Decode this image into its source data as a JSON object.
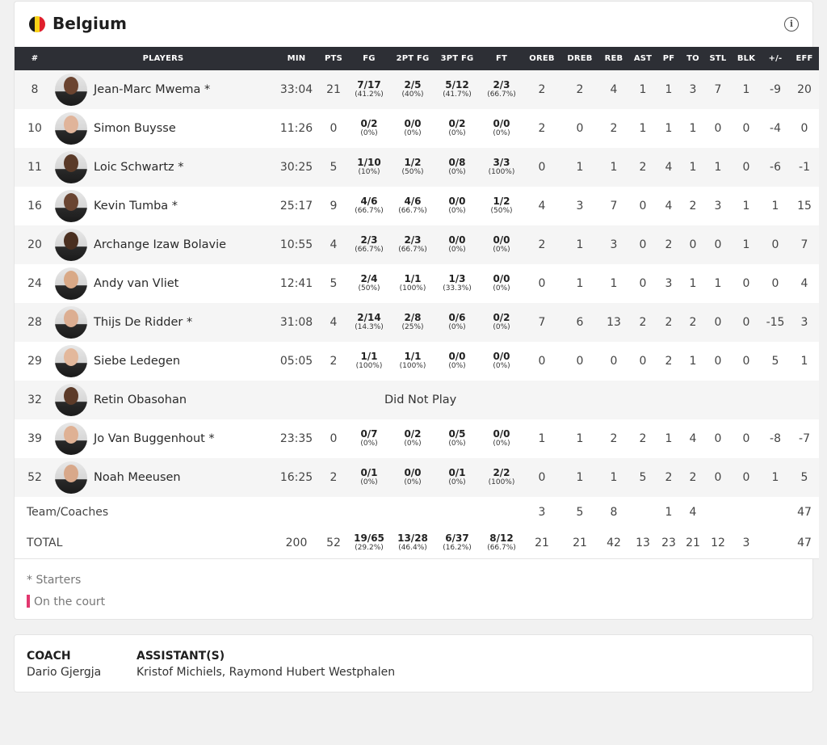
{
  "team": {
    "name": "Belgium",
    "flag_colors": [
      "#1a1a1a",
      "#f7d117",
      "#e0202b"
    ]
  },
  "columns": [
    "#",
    "PLAYERS",
    "MIN",
    "PTS",
    "FG",
    "2PT FG",
    "3PT FG",
    "FT",
    "OREB",
    "DREB",
    "REB",
    "AST",
    "PF",
    "TO",
    "STL",
    "BLK",
    "+/-",
    "EFF"
  ],
  "players": [
    {
      "no": "8",
      "name": "Jean-Marc Mwema *",
      "min": "33:04",
      "pts": "21",
      "fg": [
        "7/17",
        "(41.2%)"
      ],
      "fg2": [
        "2/5",
        "(40%)"
      ],
      "fg3": [
        "5/12",
        "(41.7%)"
      ],
      "ft": [
        "2/3",
        "(66.7%)"
      ],
      "oreb": "2",
      "dreb": "2",
      "reb": "4",
      "ast": "1",
      "pf": "1",
      "to": "3",
      "stl": "7",
      "blk": "1",
      "pm": "-9",
      "eff": "20",
      "skin": "#6b4430"
    },
    {
      "no": "10",
      "name": "Simon Buysse",
      "min": "11:26",
      "pts": "0",
      "fg": [
        "0/2",
        "(0%)"
      ],
      "fg2": [
        "0/0",
        "(0%)"
      ],
      "fg3": [
        "0/2",
        "(0%)"
      ],
      "ft": [
        "0/0",
        "(0%)"
      ],
      "oreb": "2",
      "dreb": "0",
      "reb": "2",
      "ast": "1",
      "pf": "1",
      "to": "1",
      "stl": "0",
      "blk": "0",
      "pm": "-4",
      "eff": "0",
      "skin": "#e0b49a"
    },
    {
      "no": "11",
      "name": "Loic Schwartz *",
      "min": "30:25",
      "pts": "5",
      "fg": [
        "1/10",
        "(10%)"
      ],
      "fg2": [
        "1/2",
        "(50%)"
      ],
      "fg3": [
        "0/8",
        "(0%)"
      ],
      "ft": [
        "3/3",
        "(100%)"
      ],
      "oreb": "0",
      "dreb": "1",
      "reb": "1",
      "ast": "2",
      "pf": "4",
      "to": "1",
      "stl": "1",
      "blk": "0",
      "pm": "-6",
      "eff": "-1",
      "skin": "#5a3a28"
    },
    {
      "no": "16",
      "name": "Kevin Tumba *",
      "min": "25:17",
      "pts": "9",
      "fg": [
        "4/6",
        "(66.7%)"
      ],
      "fg2": [
        "4/6",
        "(66.7%)"
      ],
      "fg3": [
        "0/0",
        "(0%)"
      ],
      "ft": [
        "1/2",
        "(50%)"
      ],
      "oreb": "4",
      "dreb": "3",
      "reb": "7",
      "ast": "0",
      "pf": "4",
      "to": "2",
      "stl": "3",
      "blk": "1",
      "pm": "1",
      "eff": "15",
      "skin": "#6a4532"
    },
    {
      "no": "20",
      "name": "Archange Izaw Bolavie",
      "min": "10:55",
      "pts": "4",
      "fg": [
        "2/3",
        "(66.7%)"
      ],
      "fg2": [
        "2/3",
        "(66.7%)"
      ],
      "fg3": [
        "0/0",
        "(0%)"
      ],
      "ft": [
        "0/0",
        "(0%)"
      ],
      "oreb": "2",
      "dreb": "1",
      "reb": "3",
      "ast": "0",
      "pf": "2",
      "to": "0",
      "stl": "0",
      "blk": "1",
      "pm": "0",
      "eff": "7",
      "skin": "#4a2f20"
    },
    {
      "no": "24",
      "name": "Andy van Vliet",
      "min": "12:41",
      "pts": "5",
      "fg": [
        "2/4",
        "(50%)"
      ],
      "fg2": [
        "1/1",
        "(100%)"
      ],
      "fg3": [
        "1/3",
        "(33.3%)"
      ],
      "ft": [
        "0/0",
        "(0%)"
      ],
      "oreb": "0",
      "dreb": "1",
      "reb": "1",
      "ast": "0",
      "pf": "3",
      "to": "1",
      "stl": "1",
      "blk": "0",
      "pm": "0",
      "eff": "4",
      "skin": "#d9a987"
    },
    {
      "no": "28",
      "name": "Thijs De Ridder *",
      "min": "31:08",
      "pts": "4",
      "fg": [
        "2/14",
        "(14.3%)"
      ],
      "fg2": [
        "2/8",
        "(25%)"
      ],
      "fg3": [
        "0/6",
        "(0%)"
      ],
      "ft": [
        "0/2",
        "(0%)"
      ],
      "oreb": "7",
      "dreb": "6",
      "reb": "13",
      "ast": "2",
      "pf": "2",
      "to": "2",
      "stl": "0",
      "blk": "0",
      "pm": "-15",
      "eff": "3",
      "skin": "#dcae92"
    },
    {
      "no": "29",
      "name": "Siebe Ledegen",
      "min": "05:05",
      "pts": "2",
      "fg": [
        "1/1",
        "(100%)"
      ],
      "fg2": [
        "1/1",
        "(100%)"
      ],
      "fg3": [
        "0/0",
        "(0%)"
      ],
      "ft": [
        "0/0",
        "(0%)"
      ],
      "oreb": "0",
      "dreb": "0",
      "reb": "0",
      "ast": "0",
      "pf": "2",
      "to": "1",
      "stl": "0",
      "blk": "0",
      "pm": "5",
      "eff": "1",
      "skin": "#e3b89c"
    },
    {
      "no": "32",
      "name": "Retin Obasohan",
      "dnp": "Did Not Play",
      "skin": "#5c3b29"
    },
    {
      "no": "39",
      "name": "Jo Van Buggenhout *",
      "min": "23:35",
      "pts": "0",
      "fg": [
        "0/7",
        "(0%)"
      ],
      "fg2": [
        "0/2",
        "(0%)"
      ],
      "fg3": [
        "0/5",
        "(0%)"
      ],
      "ft": [
        "0/0",
        "(0%)"
      ],
      "oreb": "1",
      "dreb": "1",
      "reb": "2",
      "ast": "2",
      "pf": "1",
      "to": "4",
      "stl": "0",
      "blk": "0",
      "pm": "-8",
      "eff": "-7",
      "skin": "#dfb194"
    },
    {
      "no": "52",
      "name": "Noah Meeusen",
      "min": "16:25",
      "pts": "2",
      "fg": [
        "0/1",
        "(0%)"
      ],
      "fg2": [
        "0/0",
        "(0%)"
      ],
      "fg3": [
        "0/1",
        "(0%)"
      ],
      "ft": [
        "2/2",
        "(100%)"
      ],
      "oreb": "0",
      "dreb": "1",
      "reb": "1",
      "ast": "5",
      "pf": "2",
      "to": "2",
      "stl": "0",
      "blk": "0",
      "pm": "1",
      "eff": "5",
      "skin": "#d8a88a"
    }
  ],
  "team_coaches": {
    "label": "Team/Coaches",
    "oreb": "3",
    "dreb": "5",
    "reb": "8",
    "pf": "1",
    "to": "4",
    "eff": "47"
  },
  "totals": {
    "label": "TOTAL",
    "min": "200",
    "pts": "52",
    "fg": [
      "19/65",
      "(29.2%)"
    ],
    "fg2": [
      "13/28",
      "(46.4%)"
    ],
    "fg3": [
      "6/37",
      "(16.2%)"
    ],
    "ft": [
      "8/12",
      "(66.7%)"
    ],
    "oreb": "21",
    "dreb": "21",
    "reb": "42",
    "ast": "13",
    "pf": "23",
    "to": "21",
    "stl": "12",
    "blk": "3",
    "eff": "47"
  },
  "legend": {
    "starters": "* Starters",
    "on_court": "On the court",
    "on_court_color": "#e2376f"
  },
  "coach": {
    "coach_label": "COACH",
    "coach_name": "Dario Gjergja",
    "assistants_label": "ASSISTANT(S)",
    "assistants_names": "Kristof Michiels, Raymond Hubert Westphalen"
  }
}
